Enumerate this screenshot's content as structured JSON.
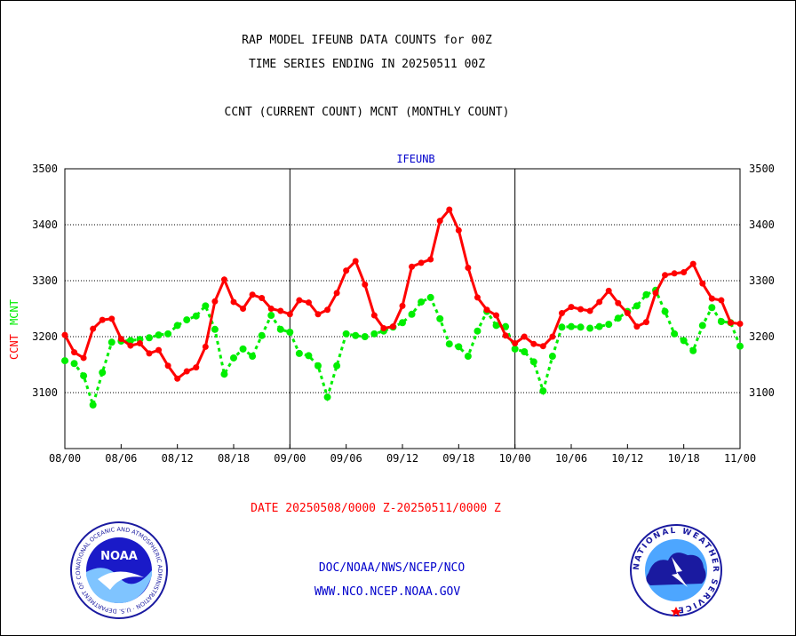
{
  "header": {
    "title_line1": "RAP MODEL IFEUNB DATA COUNTS for 00Z",
    "title_line2": "TIME SERIES ENDING IN 20250511 00Z",
    "title_line3": "CCNT (CURRENT COUNT) MCNT (MONTHLY COUNT)"
  },
  "footer": {
    "date_range": "DATE 20250508/0000 Z-20250511/0000 Z",
    "org_line": "DOC/NOAA/NWS/NCEP/NCO",
    "url_line": "WWW.NCO.NCEP.NOAA.GOV"
  },
  "logos": {
    "noaa": {
      "text": "NOAA",
      "ring_text": "NATIONAL OCEANIC AND ATMOSPHERIC ADMINISTRATION · U.S. DEPARTMENT OF COMMERCE"
    },
    "nws": {
      "ring_text": "NATIONAL WEATHER SERVICE"
    }
  },
  "chart_data": {
    "type": "line",
    "title": "IFEUNB",
    "ylabel_ccnt": "CCNT",
    "ylabel_mcnt": "MCNT",
    "ylim": [
      3000,
      3500
    ],
    "yticks": [
      3100,
      3200,
      3300,
      3400,
      3500
    ],
    "xticks": [
      "08/00",
      "08/06",
      "08/12",
      "08/18",
      "09/00",
      "09/06",
      "09/12",
      "09/18",
      "10/00",
      "10/06",
      "10/12",
      "10/18",
      "11/00"
    ],
    "x_range_hours": [
      0,
      72
    ],
    "grid": true,
    "colors": {
      "ccnt": "#ff0000",
      "mcnt": "#00ee00",
      "title": "#0000cc",
      "footer_blue": "#0000cc"
    },
    "series": [
      {
        "name": "CCNT",
        "x": [
          0,
          1,
          2,
          3,
          4,
          5,
          6,
          7,
          8,
          9,
          10,
          11,
          12,
          13,
          14,
          15,
          16,
          17,
          18,
          19,
          20,
          21,
          22,
          23,
          24,
          25,
          26,
          27,
          28,
          29,
          30,
          31,
          32,
          33,
          34,
          35,
          36,
          37,
          38,
          39,
          40,
          41,
          42,
          43,
          44,
          45,
          46,
          47,
          48,
          49,
          50,
          51,
          52,
          53,
          54,
          55,
          56,
          57,
          58,
          59,
          60,
          61,
          62,
          63,
          64,
          65,
          66,
          67,
          68,
          69,
          70,
          71,
          72
        ],
        "values": [
          3203,
          3172,
          3162,
          3214,
          3230,
          3232,
          3196,
          3184,
          3188,
          3170,
          3176,
          3148,
          3125,
          3138,
          3145,
          3182,
          3263,
          3302,
          3262,
          3250,
          3275,
          3269,
          3250,
          3246,
          3240,
          3265,
          3261,
          3240,
          3248,
          3278,
          3318,
          3335,
          3293,
          3238,
          3215,
          3218,
          3255,
          3325,
          3332,
          3338,
          3407,
          3427,
          3390,
          3323,
          3270,
          3248,
          3238,
          3202,
          3188,
          3200,
          3187,
          3183,
          3200,
          3242,
          3253,
          3249,
          3246,
          3262,
          3282,
          3260,
          3242,
          3218,
          3226,
          3278,
          3310,
          3313,
          3315,
          3330,
          3295,
          3268,
          3265,
          3225,
          3223
        ]
      },
      {
        "name": "MCNT",
        "x": [
          0,
          1,
          2,
          3,
          4,
          5,
          6,
          7,
          8,
          9,
          10,
          11,
          12,
          13,
          14,
          15,
          16,
          17,
          18,
          19,
          20,
          21,
          22,
          23,
          24,
          25,
          26,
          27,
          28,
          29,
          30,
          31,
          32,
          33,
          34,
          35,
          36,
          37,
          38,
          39,
          40,
          41,
          42,
          43,
          44,
          45,
          46,
          47,
          48,
          49,
          50,
          51,
          52,
          53,
          54,
          55,
          56,
          57,
          58,
          59,
          60,
          61,
          62,
          63,
          64,
          65,
          66,
          67,
          68,
          69,
          70,
          71,
          72
        ],
        "values": [
          3157,
          3152,
          3130,
          3078,
          3136,
          3190,
          3192,
          3193,
          3195,
          3198,
          3203,
          3205,
          3220,
          3230,
          3237,
          3255,
          3213,
          3133,
          3162,
          3178,
          3165,
          3202,
          3238,
          3213,
          3208,
          3170,
          3166,
          3148,
          3092,
          3148,
          3205,
          3202,
          3200,
          3205,
          3210,
          3217,
          3225,
          3240,
          3262,
          3270,
          3232,
          3187,
          3182,
          3165,
          3210,
          3245,
          3220,
          3218,
          3178,
          3173,
          3155,
          3103,
          3165,
          3217,
          3218,
          3217,
          3215,
          3218,
          3222,
          3233,
          3245,
          3255,
          3275,
          3283,
          3245,
          3205,
          3193,
          3175,
          3220,
          3252,
          3227,
          3225,
          3183
        ]
      }
    ]
  }
}
